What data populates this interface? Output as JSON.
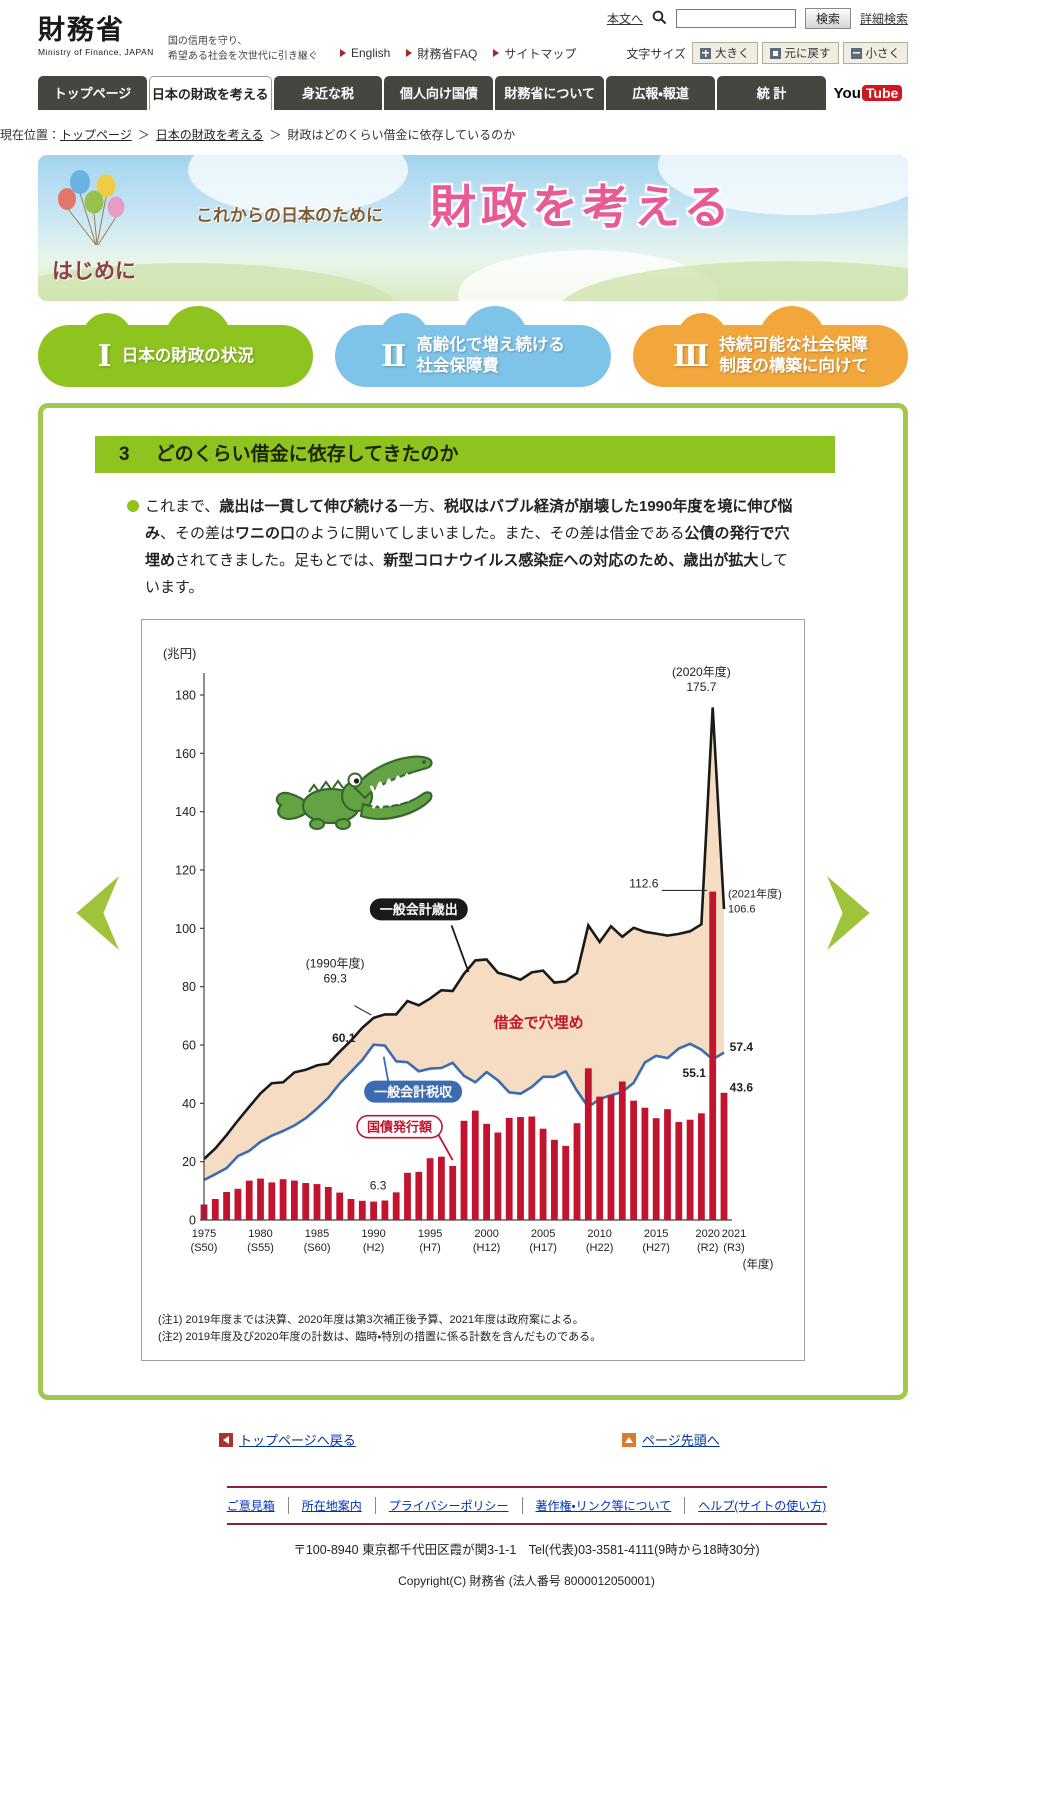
{
  "header": {
    "logo_title": "財務省",
    "logo_subtitle": "Ministry of Finance, JAPAN",
    "tagline_line1": "国の信用を守り、",
    "tagline_line2": "希望ある社会を次世代に引き継ぐ",
    "skip_link": "本文へ",
    "search": {
      "button": "検索",
      "advanced": "詳細検索"
    },
    "quick_links": [
      "English",
      "財務省FAQ",
      "サイトマップ"
    ],
    "font_size": {
      "label": "文字サイズ",
      "larger": "大きく",
      "reset": "元に戻す",
      "smaller": "小さく"
    }
  },
  "nav": {
    "tabs": [
      {
        "label": "トップページ",
        "active": false
      },
      {
        "label": "日本の財政を考える",
        "active": true
      },
      {
        "label": "身近な税",
        "active": false
      },
      {
        "label": "個人向け国債",
        "active": false
      },
      {
        "label": "財務省について",
        "active": false
      },
      {
        "label": "広報・報道",
        "active": false
      },
      {
        "label": "統 計",
        "active": false
      }
    ],
    "youtube": {
      "you": "You",
      "tube": "Tube"
    }
  },
  "breadcrumb": {
    "label": "現在位置：",
    "separator": "＞",
    "items": [
      "トップページ",
      "日本の財政を考える",
      "財政はどのくらい借金に依存しているのか"
    ]
  },
  "hero": {
    "intro": "これからの日本のために",
    "title": "財政を考える",
    "hajimeni": "はじめに"
  },
  "section_buttons": [
    {
      "numeral": "Ⅰ",
      "line1": "日本の財政の状況",
      "line2": "",
      "color": "#8fc31f"
    },
    {
      "numeral": "Ⅱ",
      "line1": "高齢化で増え続ける",
      "line2": "社会保障費",
      "color": "#7ec3e8"
    },
    {
      "numeral": "Ⅲ",
      "line1": "持続可能な社会保障",
      "line2": "制度の構築に向けて",
      "color": "#f2a73d"
    }
  ],
  "content": {
    "section_number": "3",
    "section_title": "どのくらい借金に依存してきたのか",
    "paragraph_segments": [
      {
        "t": "これまで、",
        "b": false
      },
      {
        "t": "歳出は一貫して伸び続ける",
        "b": true
      },
      {
        "t": "一方、",
        "b": false
      },
      {
        "t": "税収はバブル経済が崩壊した1990年度を境に伸び悩み",
        "b": true
      },
      {
        "t": "、その差は",
        "b": false
      },
      {
        "t": "ワニの口",
        "b": true
      },
      {
        "t": "のように開いてしまいました。また、その差は借金である",
        "b": false
      },
      {
        "t": "公債の発行で穴埋め",
        "b": true
      },
      {
        "t": "されてきました。足もとでは、",
        "b": false
      },
      {
        "t": "新型コロナウイルス感染症への対応のため、歳出が拡大",
        "b": true
      },
      {
        "t": "しています。",
        "b": false
      }
    ],
    "notes": [
      "(注1) 2019年度までは決算、2020年度は第3次補正後予算、2021年度は政府案による。",
      "(注2) 2019年度及び2020年度の計数は、臨時・特別の措置に係る計数を含んだものである。"
    ]
  },
  "chart_data": {
    "type": "line+bar",
    "y_axis_unit": "(兆円)",
    "x_axis_unit": "(年度)",
    "ylim": [
      0,
      180
    ],
    "y_ticks": [
      0,
      20,
      40,
      60,
      80,
      100,
      120,
      140,
      160,
      180
    ],
    "gap_fill_color": "#f5dcc3",
    "years": [
      1975,
      1976,
      1977,
      1978,
      1979,
      1980,
      1981,
      1982,
      1983,
      1984,
      1985,
      1986,
      1987,
      1988,
      1989,
      1990,
      1991,
      1992,
      1993,
      1994,
      1995,
      1996,
      1997,
      1998,
      1999,
      2000,
      2001,
      2002,
      2003,
      2004,
      2005,
      2006,
      2007,
      2008,
      2009,
      2010,
      2011,
      2012,
      2013,
      2014,
      2015,
      2016,
      2017,
      2018,
      2019,
      2020,
      2021
    ],
    "series": [
      {
        "name": "一般会計歳出",
        "type": "line",
        "color": "#1a1a1a",
        "values": [
          20.9,
          24.5,
          29.1,
          34.1,
          38.8,
          43.4,
          46.9,
          47.2,
          50.6,
          51.5,
          53.0,
          53.6,
          57.7,
          61.5,
          65.9,
          69.3,
          70.5,
          70.5,
          75.1,
          73.6,
          75.9,
          78.8,
          78.5,
          84.4,
          89.0,
          89.3,
          84.8,
          83.7,
          82.4,
          84.9,
          85.5,
          81.4,
          81.8,
          84.7,
          101.0,
          95.3,
          100.7,
          97.1,
          100.2,
          98.8,
          98.2,
          97.5,
          98.1,
          99.0,
          101.4,
          175.7,
          106.6
        ]
      },
      {
        "name": "一般会計税収",
        "type": "line",
        "color": "#3c6bb0",
        "values": [
          13.7,
          15.7,
          17.8,
          21.9,
          23.7,
          26.8,
          28.9,
          30.5,
          32.4,
          34.9,
          38.2,
          41.9,
          46.8,
          50.8,
          54.9,
          60.1,
          59.8,
          54.4,
          54.1,
          51.0,
          51.9,
          52.1,
          53.9,
          49.4,
          47.2,
          50.7,
          47.9,
          43.8,
          43.3,
          45.6,
          49.1,
          49.1,
          51.0,
          44.3,
          38.7,
          41.5,
          42.8,
          43.9,
          47.0,
          54.0,
          56.3,
          55.5,
          58.8,
          60.4,
          58.4,
          55.1,
          57.4
        ]
      },
      {
        "name": "国債発行額",
        "type": "bar",
        "color": "#c2142f",
        "values": [
          5.3,
          7.2,
          9.6,
          10.7,
          13.5,
          14.2,
          12.9,
          14.0,
          13.5,
          12.7,
          12.3,
          11.3,
          9.4,
          7.2,
          6.6,
          6.3,
          6.7,
          9.5,
          16.2,
          16.5,
          21.2,
          21.7,
          18.5,
          34.0,
          37.5,
          33.0,
          30.0,
          35.0,
          35.3,
          35.5,
          31.3,
          27.5,
          25.4,
          33.2,
          52.0,
          42.3,
          42.8,
          47.5,
          40.9,
          38.5,
          34.9,
          38.0,
          33.6,
          34.4,
          36.6,
          112.6,
          43.6
        ]
      }
    ],
    "x_ticks": [
      {
        "year": 1975,
        "era": "(S50)"
      },
      {
        "year": 1980,
        "era": "(S55)"
      },
      {
        "year": 1985,
        "era": "(S60)"
      },
      {
        "year": 1990,
        "era": "(H2)"
      },
      {
        "year": 1995,
        "era": "(H7)"
      },
      {
        "year": 2000,
        "era": "(H12)"
      },
      {
        "year": 2005,
        "era": "(H17)"
      },
      {
        "year": 2010,
        "era": "(H22)"
      },
      {
        "year": 2015,
        "era": "(H27)"
      },
      {
        "year": 2020,
        "era": "(R2)",
        "dx": -5
      },
      {
        "year": 2021,
        "era": "(R3)",
        "dx": 10
      }
    ],
    "badge_styles": {
      "expenditure": {
        "bg": "#1a1a1a",
        "text": "#ffffff",
        "line": "#1a1a1a"
      },
      "tax": {
        "bg": "#3c6bb0",
        "text": "#ffffff",
        "line": "#3c6bb0"
      },
      "bond": {
        "bg": "#ffffff",
        "text": "#c2142f",
        "border": "#c2142f",
        "line": "#c2142f"
      }
    },
    "badges": [
      {
        "text": "一般会計歳出",
        "style": "expenditure",
        "x": 1994.0,
        "y": 106.5,
        "size": 13,
        "leader": [
          1996.9,
          101,
          1998.4,
          85
        ]
      },
      {
        "text": "一般会計税収",
        "style": "tax",
        "x": 1993.5,
        "y": 44,
        "size": 13,
        "leader": [
          1991.3,
          47.5,
          1990.9,
          56
        ]
      },
      {
        "text": "国債発行額",
        "style": "bond",
        "x": 1992.3,
        "y": 32,
        "size": 13,
        "leader": [
          1995.7,
          29.5,
          1997.0,
          20.5
        ]
      }
    ],
    "annotations": [
      {
        "lines": [
          "(2020年度)",
          "175.7"
        ],
        "x": 2019.0,
        "y": 186.5,
        "anchor": "middle",
        "size": 12
      },
      {
        "lines": [
          "112.6"
        ],
        "x": 2015.2,
        "y": 114,
        "anchor": "end",
        "size": 12,
        "leader": [
          2015.5,
          113,
          2019.5,
          113
        ]
      },
      {
        "lines": [
          "(2021年度)",
          "106.6"
        ],
        "x": 2021.35,
        "y": 110.5,
        "anchor": "start",
        "size": 11
      },
      {
        "lines": [
          "(1990年度)",
          "69.3"
        ],
        "x": 1986.6,
        "y": 86.5,
        "anchor": "middle",
        "size": 12,
        "leader": [
          1988.3,
          73.5,
          1989.8,
          70.3
        ]
      },
      {
        "lines": [
          "60.1"
        ],
        "x": 1988.4,
        "y": 61,
        "anchor": "end",
        "size": 12,
        "bold": true
      },
      {
        "lines": [
          "6.3"
        ],
        "x": 1990.4,
        "y": 10.5,
        "anchor": "middle",
        "size": 12
      },
      {
        "lines": [
          "57.4"
        ],
        "x": 2021.5,
        "y": 58,
        "anchor": "start",
        "size": 12,
        "bold": true
      },
      {
        "lines": [
          "55.1"
        ],
        "x": 2019.4,
        "y": 49,
        "anchor": "end",
        "size": 12,
        "bold": true
      },
      {
        "lines": [
          "43.6"
        ],
        "x": 2021.5,
        "y": 44,
        "anchor": "start",
        "size": 12,
        "bold": true
      },
      {
        "lines": [
          "借金で穴埋め"
        ],
        "x": 2004.6,
        "y": 66,
        "anchor": "middle",
        "size": 15,
        "bold": true,
        "color": "#c2142f"
      }
    ]
  },
  "page_links": {
    "back_to_top_page": "トップページへ戻る",
    "page_top": "ページ先頭へ"
  },
  "footer": {
    "links": [
      "ご意見箱",
      "所在地案内",
      "プライバシーポリシー",
      "著作権・リンク等について",
      "ヘルプ(サイトの使い方)"
    ],
    "address": "〒100-8940 東京都千代田区霞が関3-1-1　Tel(代表)03-3581-4111(9時から18時30分)",
    "copyright": "Copyright(C) 財務省 (法人番号 8000012050001)"
  }
}
